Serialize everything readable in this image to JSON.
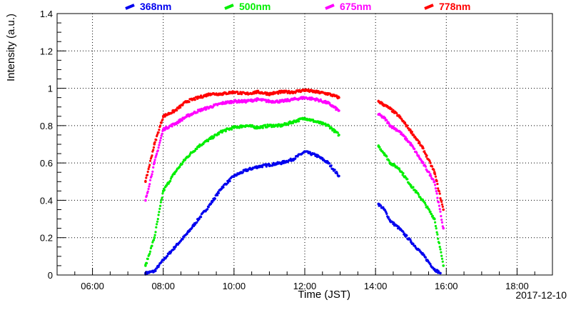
{
  "chart_data": {
    "type": "scatter",
    "xlabel": "Time (JST)",
    "ylabel": "Intensity (a.u.)",
    "date_label": "2017-12-10",
    "xlim": [
      "05:00",
      "19:00"
    ],
    "ylim": [
      0,
      1.4
    ],
    "x_ticks": [
      "06:00",
      "08:00",
      "10:00",
      "12:00",
      "14:00",
      "16:00",
      "18:00"
    ],
    "y_ticks": [
      "0",
      "0.2",
      "0.4",
      "0.6",
      "0.8",
      "1",
      "1.2",
      "1.4"
    ],
    "grid": true,
    "legend_position": "top",
    "series": [
      {
        "name": "368nm",
        "color": "#0000ee",
        "points": [
          [
            "07:30",
            0.01
          ],
          [
            "07:45",
            0.02
          ],
          [
            "08:00",
            0.08
          ],
          [
            "08:20",
            0.15
          ],
          [
            "08:40",
            0.22
          ],
          [
            "09:00",
            0.3
          ],
          [
            "09:20",
            0.38
          ],
          [
            "09:40",
            0.47
          ],
          [
            "10:00",
            0.53
          ],
          [
            "10:20",
            0.56
          ],
          [
            "10:40",
            0.58
          ],
          [
            "11:00",
            0.59
          ],
          [
            "11:20",
            0.6
          ],
          [
            "11:40",
            0.62
          ],
          [
            "12:00",
            0.66
          ],
          [
            "12:20",
            0.64
          ],
          [
            "12:40",
            0.6
          ],
          [
            "12:58",
            0.53
          ],
          [
            "14:05",
            0.38
          ],
          [
            "14:15",
            0.35
          ],
          [
            "14:25",
            0.29
          ],
          [
            "14:40",
            0.25
          ],
          [
            "15:00",
            0.18
          ],
          [
            "15:20",
            0.11
          ],
          [
            "15:40",
            0.03
          ],
          [
            "15:50",
            0.01
          ]
        ]
      },
      {
        "name": "500nm",
        "color": "#00ee00",
        "points": [
          [
            "07:30",
            0.05
          ],
          [
            "07:45",
            0.2
          ],
          [
            "08:00",
            0.45
          ],
          [
            "08:20",
            0.55
          ],
          [
            "08:40",
            0.63
          ],
          [
            "09:00",
            0.69
          ],
          [
            "09:20",
            0.73
          ],
          [
            "09:40",
            0.77
          ],
          [
            "10:00",
            0.79
          ],
          [
            "10:20",
            0.8
          ],
          [
            "10:40",
            0.79
          ],
          [
            "11:00",
            0.8
          ],
          [
            "11:20",
            0.8
          ],
          [
            "11:40",
            0.82
          ],
          [
            "12:00",
            0.84
          ],
          [
            "12:20",
            0.82
          ],
          [
            "12:40",
            0.8
          ],
          [
            "12:58",
            0.75
          ],
          [
            "14:05",
            0.69
          ],
          [
            "14:15",
            0.65
          ],
          [
            "14:25",
            0.6
          ],
          [
            "14:40",
            0.57
          ],
          [
            "15:00",
            0.48
          ],
          [
            "15:20",
            0.4
          ],
          [
            "15:40",
            0.3
          ],
          [
            "15:55",
            0.05
          ]
        ]
      },
      {
        "name": "675nm",
        "color": "#ff00ff",
        "points": [
          [
            "07:30",
            0.4
          ],
          [
            "07:45",
            0.6
          ],
          [
            "08:00",
            0.78
          ],
          [
            "08:20",
            0.81
          ],
          [
            "08:40",
            0.85
          ],
          [
            "09:00",
            0.88
          ],
          [
            "09:20",
            0.9
          ],
          [
            "09:40",
            0.92
          ],
          [
            "10:00",
            0.93
          ],
          [
            "10:20",
            0.93
          ],
          [
            "10:40",
            0.94
          ],
          [
            "11:00",
            0.93
          ],
          [
            "11:20",
            0.93
          ],
          [
            "11:40",
            0.94
          ],
          [
            "12:00",
            0.95
          ],
          [
            "12:20",
            0.94
          ],
          [
            "12:40",
            0.92
          ],
          [
            "12:58",
            0.88
          ],
          [
            "14:05",
            0.86
          ],
          [
            "14:15",
            0.84
          ],
          [
            "14:25",
            0.8
          ],
          [
            "14:40",
            0.77
          ],
          [
            "15:00",
            0.7
          ],
          [
            "15:20",
            0.6
          ],
          [
            "15:40",
            0.5
          ],
          [
            "15:55",
            0.25
          ]
        ]
      },
      {
        "name": "778nm",
        "color": "#ff0000",
        "points": [
          [
            "07:30",
            0.5
          ],
          [
            "07:45",
            0.7
          ],
          [
            "08:00",
            0.85
          ],
          [
            "08:20",
            0.88
          ],
          [
            "08:40",
            0.93
          ],
          [
            "09:00",
            0.95
          ],
          [
            "09:20",
            0.97
          ],
          [
            "09:40",
            0.97
          ],
          [
            "10:00",
            0.98
          ],
          [
            "10:20",
            0.97
          ],
          [
            "10:40",
            0.98
          ],
          [
            "11:00",
            0.97
          ],
          [
            "11:20",
            0.98
          ],
          [
            "11:40",
            0.98
          ],
          [
            "12:00",
            0.99
          ],
          [
            "12:20",
            0.98
          ],
          [
            "12:40",
            0.97
          ],
          [
            "12:58",
            0.95
          ],
          [
            "14:05",
            0.93
          ],
          [
            "14:15",
            0.91
          ],
          [
            "14:25",
            0.89
          ],
          [
            "14:40",
            0.85
          ],
          [
            "15:00",
            0.77
          ],
          [
            "15:20",
            0.68
          ],
          [
            "15:40",
            0.55
          ],
          [
            "15:55",
            0.35
          ]
        ]
      }
    ]
  }
}
